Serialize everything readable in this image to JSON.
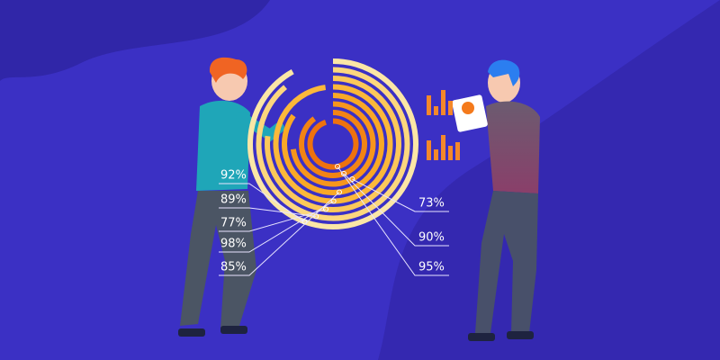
{
  "chart_data": {
    "type": "radial_bar",
    "values": [
      92,
      89,
      77,
      98,
      85,
      73,
      90,
      95
    ],
    "value_labels": [
      "92%",
      "89%",
      "77%",
      "98%",
      "85%",
      "73%",
      "90%",
      "95%"
    ],
    "colors": [
      "#fbe6a6",
      "#fcd77e",
      "#fcc85a",
      "#fbb83a",
      "#f9a826",
      "#f7961c",
      "#f28414",
      "#ee720e"
    ]
  }
}
